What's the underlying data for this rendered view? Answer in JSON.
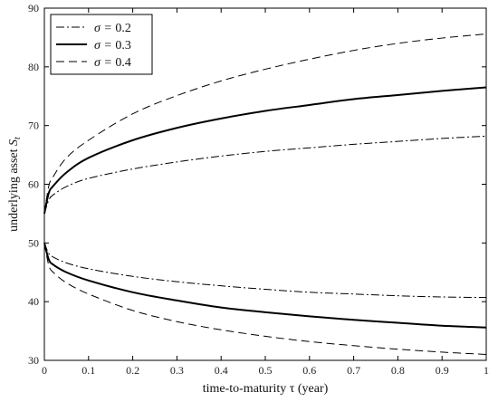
{
  "chart_data": {
    "type": "line",
    "title": "",
    "xlabel": "time-to-maturity τ (year)",
    "ylabel": "underlying asset S_t",
    "ylabel_main": "underlying asset ",
    "ylabel_sym": "S",
    "ylabel_sub": "t",
    "xlim": [
      0,
      1
    ],
    "ylim": [
      30,
      90
    ],
    "x_ticks": [
      "0",
      "0.1",
      "0.2",
      "0.3",
      "0.4",
      "0.5",
      "0.6",
      "0.7",
      "0.8",
      "0.9",
      "1"
    ],
    "y_ticks": [
      "30",
      "40",
      "50",
      "60",
      "70",
      "80",
      "90"
    ],
    "grid": false,
    "legend_position": "top-left",
    "x": [
      0,
      0.01,
      0.02,
      0.05,
      0.1,
      0.2,
      0.3,
      0.4,
      0.5,
      0.6,
      0.7,
      0.8,
      0.9,
      1.0
    ],
    "series": [
      {
        "name": "σ = 0.2",
        "legend_sym": "σ = ",
        "legend_val": "0.2",
        "style": "dashdot",
        "width": 1,
        "color": "#000000",
        "upper": [
          55,
          57.3,
          58.2,
          59.6,
          61.0,
          62.6,
          63.8,
          64.8,
          65.6,
          66.2,
          66.8,
          67.3,
          67.8,
          68.2
        ],
        "lower": [
          50,
          48.2,
          47.6,
          46.6,
          45.6,
          44.3,
          43.4,
          42.7,
          42.1,
          41.6,
          41.3,
          41.0,
          40.8,
          40.7
        ]
      },
      {
        "name": "σ = 0.3",
        "legend_sym": "σ = ",
        "legend_val": "0.3",
        "style": "solid",
        "width": 2,
        "color": "#000000",
        "upper": [
          55,
          58.5,
          59.7,
          62.0,
          64.5,
          67.5,
          69.6,
          71.2,
          72.5,
          73.5,
          74.5,
          75.2,
          75.9,
          76.5
        ],
        "lower": [
          50,
          47.2,
          46.3,
          45.0,
          43.6,
          41.6,
          40.2,
          39.0,
          38.2,
          37.5,
          36.9,
          36.4,
          35.9,
          35.6
        ]
      },
      {
        "name": "σ = 0.4",
        "legend_sym": "σ = ",
        "legend_val": "0.4",
        "style": "dashed",
        "width": 1,
        "color": "#000000",
        "upper": [
          55,
          59.7,
          61.3,
          64.5,
          67.5,
          72.0,
          75.1,
          77.6,
          79.6,
          81.3,
          82.8,
          84.0,
          84.9,
          85.6
        ],
        "lower": [
          50,
          46.2,
          45.0,
          43.2,
          41.3,
          38.5,
          36.6,
          35.2,
          34.1,
          33.2,
          32.5,
          31.9,
          31.4,
          31.0
        ]
      }
    ]
  }
}
